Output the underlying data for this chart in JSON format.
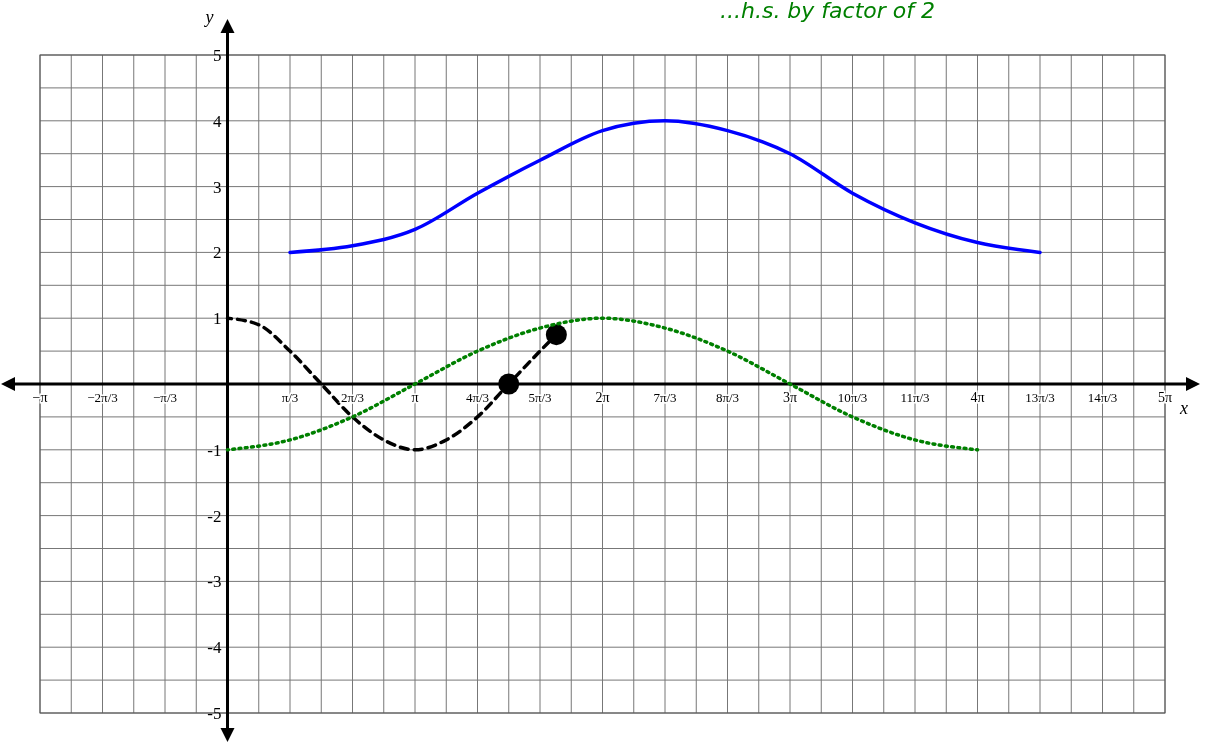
{
  "chart_data": {
    "type": "line",
    "xlabel": "x",
    "ylabel": "y",
    "annotations": [
      "...h.s. by factor of 2"
    ],
    "xlim": [
      -3.1416,
      15.708
    ],
    "ylim": [
      -5,
      5
    ],
    "xticks": [
      {
        "value": -3.1416,
        "label": "−π"
      },
      {
        "value": -2.618,
        "label": null
      },
      {
        "value": -2.0944,
        "label": "−2π/3"
      },
      {
        "value": -1.5708,
        "label": null
      },
      {
        "value": -1.0472,
        "label": "−π/3"
      },
      {
        "value": -0.5236,
        "label": null
      },
      {
        "value": 0,
        "label": null
      },
      {
        "value": 0.5236,
        "label": null
      },
      {
        "value": 1.0472,
        "label": "π/3"
      },
      {
        "value": 1.5708,
        "label": null
      },
      {
        "value": 2.0944,
        "label": "2π/3"
      },
      {
        "value": 2.618,
        "label": null
      },
      {
        "value": 3.1416,
        "label": "π"
      },
      {
        "value": 3.6652,
        "label": null
      },
      {
        "value": 4.1888,
        "label": "4π/3"
      },
      {
        "value": 4.7124,
        "label": null
      },
      {
        "value": 5.236,
        "label": "5π/3"
      },
      {
        "value": 5.7596,
        "label": null
      },
      {
        "value": 6.2832,
        "label": "2π"
      },
      {
        "value": 6.8068,
        "label": null
      },
      {
        "value": 7.3304,
        "label": "7π/3"
      },
      {
        "value": 7.854,
        "label": null
      },
      {
        "value": 8.3776,
        "label": "8π/3"
      },
      {
        "value": 8.9012,
        "label": null
      },
      {
        "value": 9.4248,
        "label": "3π"
      },
      {
        "value": 9.9484,
        "label": null
      },
      {
        "value": 10.472,
        "label": "10π/3"
      },
      {
        "value": 10.9956,
        "label": null
      },
      {
        "value": 11.5192,
        "label": "11π/3"
      },
      {
        "value": 12.0428,
        "label": null
      },
      {
        "value": 12.5664,
        "label": "4π"
      },
      {
        "value": 13.09,
        "label": null
      },
      {
        "value": 13.6136,
        "label": "13π/3"
      },
      {
        "value": 14.1372,
        "label": null
      },
      {
        "value": 14.6608,
        "label": "14π/3"
      },
      {
        "value": 15.1844,
        "label": null
      },
      {
        "value": 15.708,
        "label": "5π"
      }
    ],
    "yticks": [
      -5,
      {
        "value": -4.5,
        "label": null
      },
      -4,
      {
        "value": -3.5,
        "label": null
      },
      -3,
      {
        "value": -2.5,
        "label": null
      },
      -2,
      {
        "value": -1.5,
        "label": null
      },
      -1,
      {
        "value": -0.5,
        "label": null
      },
      {
        "value": 0,
        "label": null
      },
      {
        "value": 0.5,
        "label": null
      },
      1,
      {
        "value": 1.5,
        "label": null
      },
      2,
      {
        "value": 2.5,
        "label": null
      },
      3,
      {
        "value": 3.5,
        "label": null
      },
      4,
      {
        "value": 4.5,
        "label": null
      },
      5
    ],
    "grid": true,
    "series": [
      {
        "color": "#0000ff",
        "line_style": "solid",
        "x": [
          1.047,
          2.094,
          3.142,
          4.189,
          5.236,
          6.283,
          7.33,
          8.378,
          9.425,
          10.472,
          11.519,
          12.566,
          13.614
        ],
        "values": [
          2,
          2.1,
          2.35,
          2.9,
          3.4,
          3.85,
          4,
          3.85,
          3.5,
          2.9,
          2.45,
          2.15,
          2
        ]
      },
      {
        "color": "#000000",
        "line_style": "dashed",
        "x": [
          0,
          0.524,
          1.047,
          1.571,
          2.094,
          2.618,
          3.142,
          3.665,
          4.189,
          4.712,
          5.236,
          5.51
        ],
        "values": [
          1,
          0.9,
          0.5,
          0,
          -0.5,
          -0.85,
          -1,
          -0.85,
          -0.5,
          0,
          0.5,
          0.75
        ]
      },
      {
        "color": "#000000",
        "type": "scatter",
        "marker": "circle",
        "x": [
          4.712,
          5.51
        ],
        "values": [
          0,
          0.75
        ]
      },
      {
        "color": "#008000",
        "line_style": "dotted",
        "x": [
          0,
          1.047,
          2.094,
          3.142,
          4.189,
          5.236,
          6.283,
          7.33,
          8.378,
          9.425,
          10.472,
          11.519,
          12.566
        ],
        "values": [
          -1,
          -0.85,
          -0.5,
          0,
          0.5,
          0.85,
          1,
          0.85,
          0.5,
          0,
          -0.5,
          -0.85,
          -1
        ]
      }
    ]
  }
}
